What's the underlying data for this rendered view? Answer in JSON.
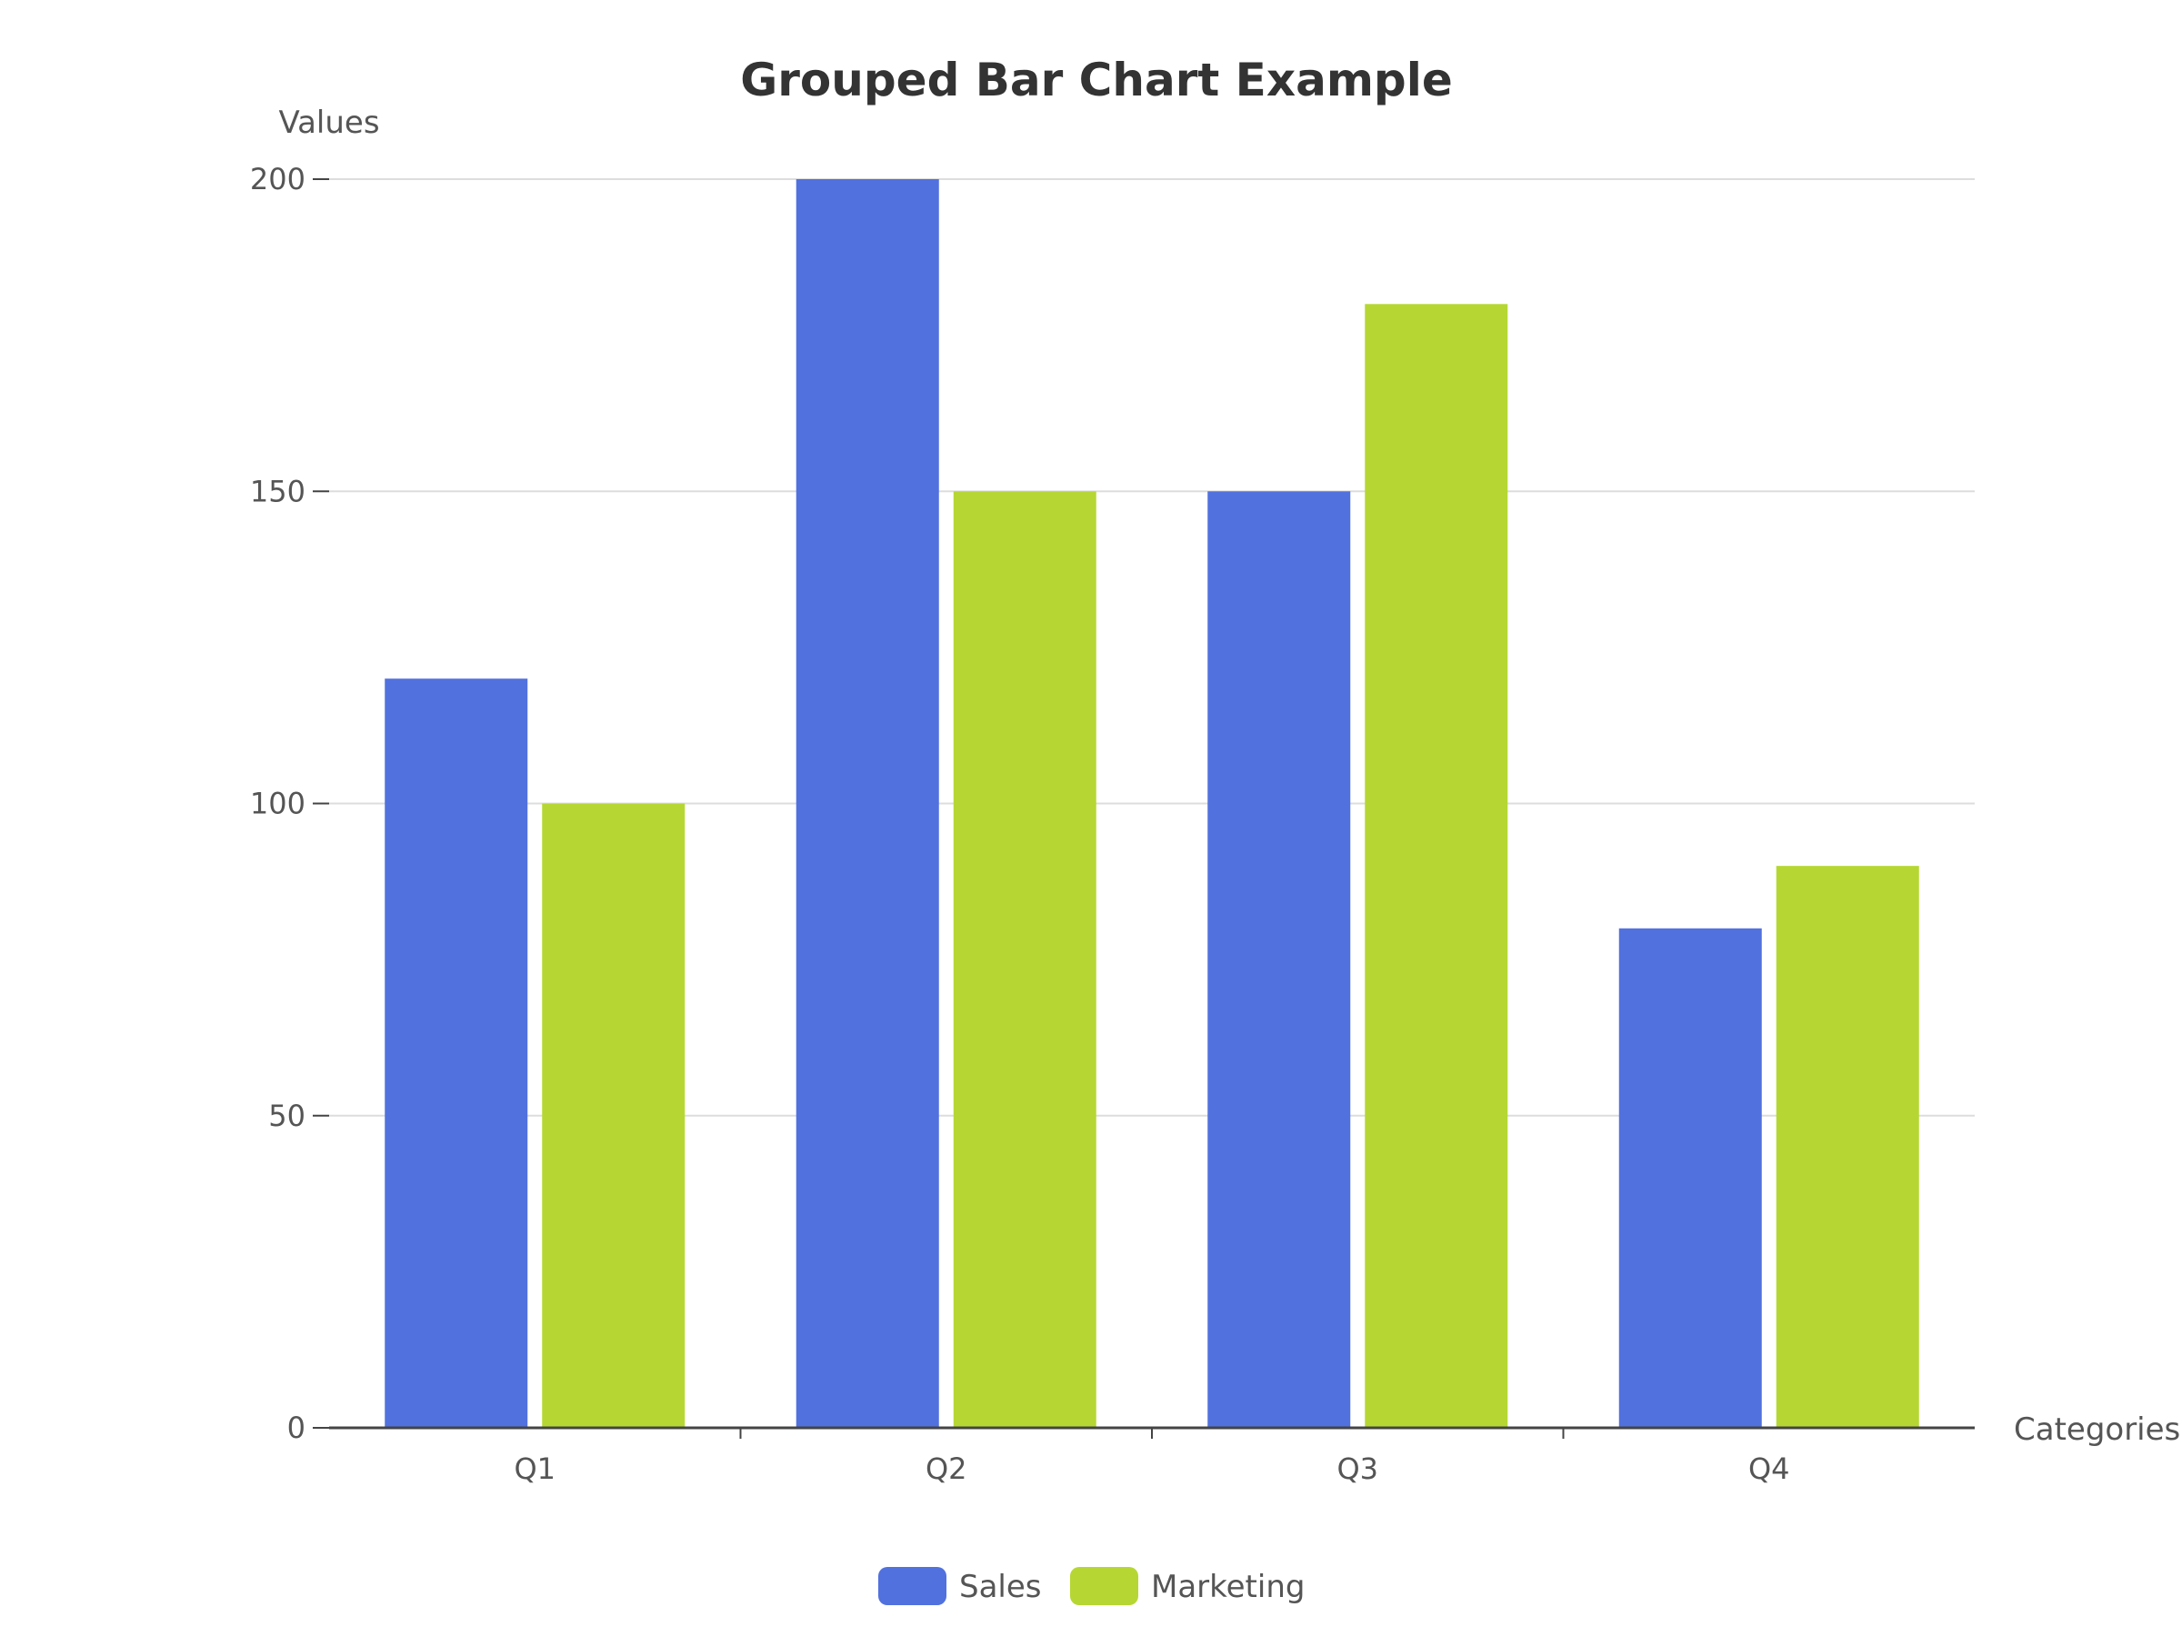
{
  "chart_data": {
    "type": "bar",
    "title": "Grouped Bar Chart Example",
    "xlabel": "Categories",
    "ylabel": "Values",
    "categories": [
      "Q1",
      "Q2",
      "Q3",
      "Q4"
    ],
    "series": [
      {
        "name": "Sales",
        "values": [
          120,
          200,
          150,
          80
        ],
        "color": "#5171DE"
      },
      {
        "name": "Marketing",
        "values": [
          100,
          150,
          180,
          90
        ],
        "color": "#B6D733"
      }
    ],
    "ylim": [
      0,
      200
    ],
    "yticks": [
      0,
      50,
      100,
      150,
      200
    ],
    "grid": true,
    "legend": "bottom-center"
  }
}
